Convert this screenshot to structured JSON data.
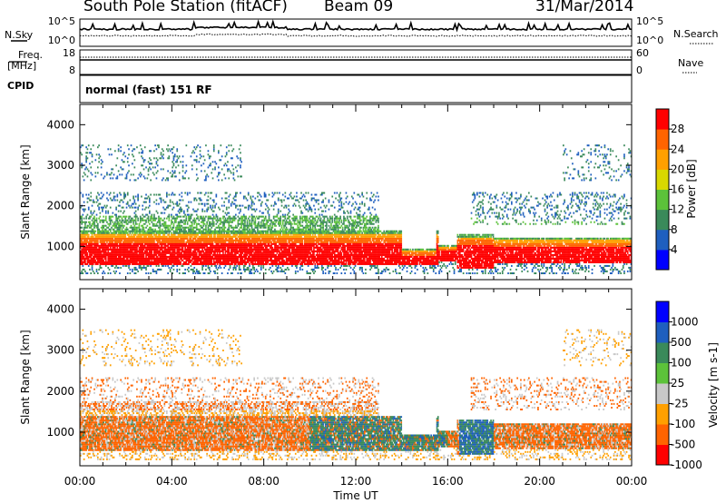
{
  "header": {
    "station_title": "South Pole Station (fitACF)",
    "beam": "Beam 09",
    "date": "31/Mar/2014"
  },
  "side_labels": {
    "nsky": "N.Sky",
    "nsearch": "N.Search",
    "freq_top": "Freq.",
    "freq_bottom": "[MHz]",
    "nave": "Nave",
    "cpid": "CPID"
  },
  "cpid_text": "normal (fast) 151 RF",
  "colors": {
    "power": [
      "#0000ff",
      "#1f5fbf",
      "#3a8a5a",
      "#5cc23a",
      "#d8d800",
      "#ffa000",
      "#ff6400",
      "#ff0000"
    ],
    "velocity": [
      "#ff0000",
      "#ff6400",
      "#ffa000",
      "#c8c8c8",
      "#5cc23a",
      "#3a8a5a",
      "#1f5fbf",
      "#0000ff"
    ]
  },
  "chart_data": [
    {
      "type": "line",
      "panel": "noise",
      "left_ticks": [
        "10^5",
        "10^0"
      ],
      "right_ticks": [
        "10^5",
        "10^0"
      ],
      "series": [
        {
          "name": "N.Sky",
          "style": "solid"
        },
        {
          "name": "N.Search",
          "style": "dotted"
        }
      ]
    },
    {
      "type": "line",
      "panel": "frequency",
      "left_ticks": [
        "18",
        "8"
      ],
      "right_ticks": [
        "60",
        "0"
      ],
      "series": [
        {
          "name": "Freq.",
          "style": "solid"
        },
        {
          "name": "Nave",
          "style": "dotted"
        }
      ]
    },
    {
      "type": "heatmap",
      "panel": "power",
      "ylabel": "Slant Range [km]",
      "yticks": [
        "1000",
        "2000",
        "3000",
        "4000"
      ],
      "ylim": [
        180,
        4500
      ],
      "xlim": [
        0,
        24
      ],
      "colorbar_label": "Power [dB]",
      "colorbar_ticks": [
        "4",
        "8",
        "12",
        "16",
        "20",
        "24",
        "28"
      ]
    },
    {
      "type": "heatmap",
      "panel": "velocity",
      "ylabel": "Slant Range [km]",
      "yticks": [
        "1000",
        "2000",
        "3000",
        "4000"
      ],
      "ylim": [
        180,
        4500
      ],
      "xlim": [
        0,
        24
      ],
      "xlabel": "Time UT",
      "xticks": [
        "00:00",
        "04:00",
        "08:00",
        "12:00",
        "16:00",
        "20:00",
        "00:00"
      ],
      "colorbar_label": "Velocity [m s-1]",
      "colorbar_ticks": [
        "1000",
        "500",
        "100",
        "25",
        "-25",
        "-100",
        "-500",
        "-1000"
      ]
    }
  ]
}
